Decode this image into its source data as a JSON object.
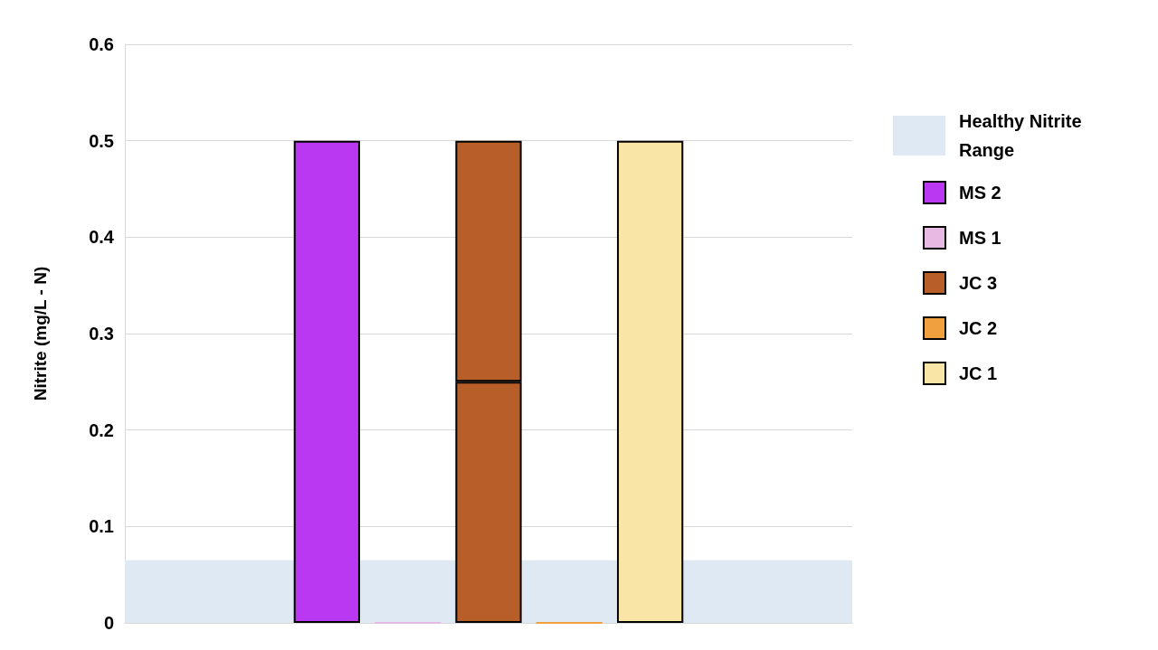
{
  "chart_data": {
    "type": "bar",
    "ylabel": "Nitrite (mg/L - N)",
    "categories": [
      null,
      null,
      null,
      null,
      null,
      null,
      null,
      null,
      null
    ],
    "stacked": true,
    "series": [
      {
        "name": "MS 2",
        "color": "#bb38f3",
        "values": [
          null,
          null,
          0.5,
          null,
          null,
          null,
          null,
          null,
          null
        ]
      },
      {
        "name": "MS 1",
        "color": "#e8b9e3",
        "values": [
          null,
          null,
          null,
          0,
          null,
          null,
          null,
          null,
          null
        ]
      },
      {
        "name": "JC 3",
        "color": "#b75e29",
        "values": [
          null,
          null,
          null,
          null,
          0.25,
          null,
          null,
          null,
          null
        ]
      },
      {
        "color": "#b75e29",
        "values": [
          null,
          null,
          null,
          null,
          0.25,
          null,
          null,
          null,
          null
        ]
      },
      {
        "name": "JC 2",
        "color": "#f0a03e",
        "values": [
          null,
          null,
          null,
          null,
          null,
          0,
          null,
          null,
          null
        ]
      },
      {
        "name": "JC 1",
        "color": "#f9e5a5",
        "values": [
          null,
          null,
          null,
          null,
          null,
          null,
          0.5,
          null,
          null
        ]
      }
    ],
    "ylim": [
      0,
      0.6
    ],
    "yticks": [
      0,
      0.1,
      0.2,
      0.3,
      0.4,
      0.5,
      0.6
    ],
    "grid": "y",
    "legend": "right",
    "bands": [
      {
        "axis": "y",
        "from": 0,
        "to": 0.065,
        "label": "Healthy Nitrite Range",
        "color": "#dfe9f4"
      }
    ]
  }
}
